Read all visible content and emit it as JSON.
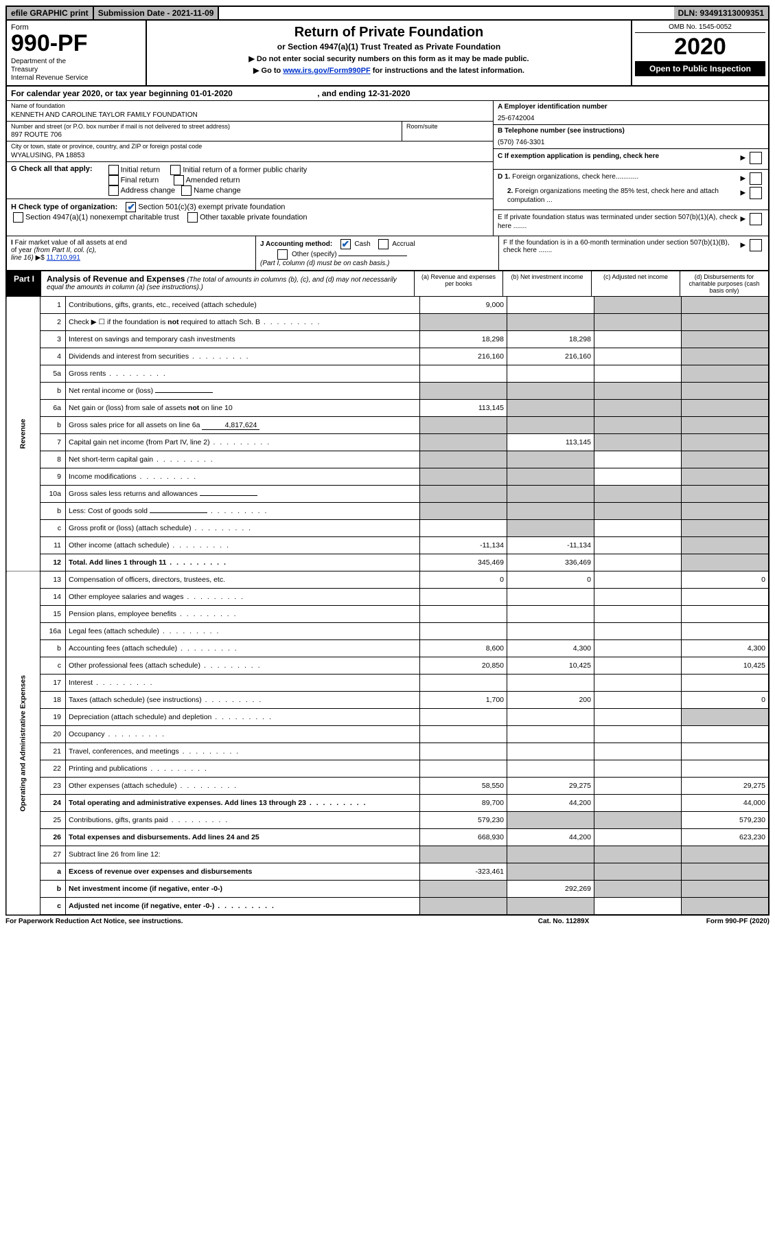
{
  "topbar": {
    "efile": "efile GRAPHIC print",
    "subdate_label": "Submission Date - 2021-11-09",
    "dln": "DLN: 93491313009351"
  },
  "header": {
    "form_label": "Form",
    "form_num": "990-PF",
    "dept": "Department of the Treasury\nInternal Revenue Service",
    "title": "Return of Private Foundation",
    "subtitle": "or Section 4947(a)(1) Trust Treated as Private Foundation",
    "note1": "▶ Do not enter social security numbers on this form as it may be made public.",
    "note2_pre": "▶ Go to ",
    "note2_link": "www.irs.gov/Form990PF",
    "note2_post": " for instructions and the latest information.",
    "omb": "OMB No. 1545-0052",
    "year": "2020",
    "open": "Open to Public Inspection"
  },
  "calendar": {
    "text_pre": "For calendar year 2020, or tax year beginning ",
    "begin": "01-01-2020",
    "text_mid": " , and ending ",
    "end": "12-31-2020"
  },
  "name_block": {
    "label": "Name of foundation",
    "value": "KENNETH AND CAROLINE TAYLOR FAMILY FOUNDATION",
    "addr_label": "Number and street (or P.O. box number if mail is not delivered to street address)",
    "addr": "897 ROUTE 706",
    "room_label": "Room/suite",
    "city_label": "City or town, state or province, country, and ZIP or foreign postal code",
    "city": "WYALUSING, PA  18853"
  },
  "right_block": {
    "a_label": "A Employer identification number",
    "a_val": "25-6742004",
    "b_label": "B Telephone number (see instructions)",
    "b_val": "(570) 746-3301",
    "c_label": "C If exemption application is pending, check here",
    "d1": "D 1. Foreign organizations, check here............",
    "d2": "2. Foreign organizations meeting the 85% test, check here and attach computation ...",
    "e": "E  If private foundation status was terminated under section 507(b)(1)(A), check here .......",
    "f": "F  If the foundation is in a 60-month termination under section 507(b)(1)(B), check here ......."
  },
  "g": {
    "label": "G Check all that apply:",
    "opts": [
      "Initial return",
      "Initial return of a former public charity",
      "Final return",
      "Amended return",
      "Address change",
      "Name change"
    ]
  },
  "h": {
    "label": "H Check type of organization:",
    "o1": "Section 501(c)(3) exempt private foundation",
    "o2": "Section 4947(a)(1) nonexempt charitable trust",
    "o3": "Other taxable private foundation"
  },
  "i": {
    "label": "I Fair market value of all assets at end of year (from Part II, col. (c), line 16) ▶$",
    "val": "11,710,991"
  },
  "j": {
    "label": "J Accounting method:",
    "cash": "Cash",
    "accrual": "Accrual",
    "other": "Other (specify)",
    "note": "(Part I, column (d) must be on cash basis.)"
  },
  "part1": {
    "label": "Part I",
    "head": "Analysis of Revenue and Expenses",
    "sub": " (The total of amounts in columns (b), (c), and (d) may not necessarily equal the amounts in column (a) (see instructions).)",
    "cols": {
      "a": "(a) Revenue and expenses per books",
      "b": "(b) Net investment income",
      "c": "(c) Adjusted net income",
      "d": "(d) Disbursements for charitable purposes (cash basis only)"
    }
  },
  "rows": [
    {
      "n": "1",
      "desc": "Contributions, gifts, grants, etc., received (attach schedule)",
      "a": "9,000",
      "b": "",
      "c": "g",
      "d": "g"
    },
    {
      "n": "2",
      "desc": "Check ▶ ☐ if the foundation is not required to attach Sch. B",
      "dots": true,
      "a": "g",
      "b": "g",
      "c": "g",
      "d": "g"
    },
    {
      "n": "3",
      "desc": "Interest on savings and temporary cash investments",
      "a": "18,298",
      "b": "18,298",
      "c": "",
      "d": "g"
    },
    {
      "n": "4",
      "desc": "Dividends and interest from securities",
      "dots": true,
      "a": "216,160",
      "b": "216,160",
      "c": "",
      "d": "g"
    },
    {
      "n": "5a",
      "desc": "Gross rents",
      "dots": true,
      "a": "",
      "b": "",
      "c": "",
      "d": "g"
    },
    {
      "n": "b",
      "desc": "Net rental income or (loss)",
      "inner": "",
      "a": "g",
      "b": "g",
      "c": "g",
      "d": "g"
    },
    {
      "n": "6a",
      "desc": "Net gain or (loss) from sale of assets not on line 10",
      "a": "113,145",
      "b": "g",
      "c": "g",
      "d": "g"
    },
    {
      "n": "b",
      "desc": "Gross sales price for all assets on line 6a",
      "inner": "4,817,624",
      "a": "g",
      "b": "g",
      "c": "g",
      "d": "g"
    },
    {
      "n": "7",
      "desc": "Capital gain net income (from Part IV, line 2)",
      "dots": true,
      "a": "g",
      "b": "113,145",
      "c": "g",
      "d": "g"
    },
    {
      "n": "8",
      "desc": "Net short-term capital gain",
      "dots": true,
      "a": "g",
      "b": "g",
      "c": "",
      "d": "g"
    },
    {
      "n": "9",
      "desc": "Income modifications",
      "dots": true,
      "a": "g",
      "b": "g",
      "c": "",
      "d": "g"
    },
    {
      "n": "10a",
      "desc": "Gross sales less returns and allowances",
      "inner": "",
      "a": "g",
      "b": "g",
      "c": "g",
      "d": "g"
    },
    {
      "n": "b",
      "desc": "Less: Cost of goods sold",
      "dots": true,
      "inner": "",
      "a": "g",
      "b": "g",
      "c": "g",
      "d": "g"
    },
    {
      "n": "c",
      "desc": "Gross profit or (loss) (attach schedule)",
      "dots": true,
      "a": "",
      "b": "g",
      "c": "",
      "d": "g"
    },
    {
      "n": "11",
      "desc": "Other income (attach schedule)",
      "dots": true,
      "a": "-11,134",
      "b": "-11,134",
      "c": "",
      "d": "g"
    },
    {
      "n": "12",
      "desc": "Total. Add lines 1 through 11",
      "dots": true,
      "bold": true,
      "a": "345,469",
      "b": "336,469",
      "c": "",
      "d": "g"
    },
    {
      "n": "13",
      "desc": "Compensation of officers, directors, trustees, etc.",
      "a": "0",
      "b": "0",
      "c": "",
      "d": "0"
    },
    {
      "n": "14",
      "desc": "Other employee salaries and wages",
      "dots": true,
      "a": "",
      "b": "",
      "c": "",
      "d": ""
    },
    {
      "n": "15",
      "desc": "Pension plans, employee benefits",
      "dots": true,
      "a": "",
      "b": "",
      "c": "",
      "d": ""
    },
    {
      "n": "16a",
      "desc": "Legal fees (attach schedule)",
      "dots": true,
      "a": "",
      "b": "",
      "c": "",
      "d": ""
    },
    {
      "n": "b",
      "desc": "Accounting fees (attach schedule)",
      "dots": true,
      "a": "8,600",
      "b": "4,300",
      "c": "",
      "d": "4,300"
    },
    {
      "n": "c",
      "desc": "Other professional fees (attach schedule)",
      "dots": true,
      "a": "20,850",
      "b": "10,425",
      "c": "",
      "d": "10,425"
    },
    {
      "n": "17",
      "desc": "Interest",
      "dots": true,
      "a": "",
      "b": "",
      "c": "",
      "d": ""
    },
    {
      "n": "18",
      "desc": "Taxes (attach schedule) (see instructions)",
      "dots": true,
      "a": "1,700",
      "b": "200",
      "c": "",
      "d": "0"
    },
    {
      "n": "19",
      "desc": "Depreciation (attach schedule) and depletion",
      "dots": true,
      "a": "",
      "b": "",
      "c": "",
      "d": "g"
    },
    {
      "n": "20",
      "desc": "Occupancy",
      "dots": true,
      "a": "",
      "b": "",
      "c": "",
      "d": ""
    },
    {
      "n": "21",
      "desc": "Travel, conferences, and meetings",
      "dots": true,
      "a": "",
      "b": "",
      "c": "",
      "d": ""
    },
    {
      "n": "22",
      "desc": "Printing and publications",
      "dots": true,
      "a": "",
      "b": "",
      "c": "",
      "d": ""
    },
    {
      "n": "23",
      "desc": "Other expenses (attach schedule)",
      "dots": true,
      "a": "58,550",
      "b": "29,275",
      "c": "",
      "d": "29,275"
    },
    {
      "n": "24",
      "desc": "Total operating and administrative expenses. Add lines 13 through 23",
      "dots": true,
      "bold": true,
      "a": "89,700",
      "b": "44,200",
      "c": "",
      "d": "44,000"
    },
    {
      "n": "25",
      "desc": "Contributions, gifts, grants paid",
      "dots": true,
      "a": "579,230",
      "b": "g",
      "c": "g",
      "d": "579,230"
    },
    {
      "n": "26",
      "desc": "Total expenses and disbursements. Add lines 24 and 25",
      "bold": true,
      "a": "668,930",
      "b": "44,200",
      "c": "",
      "d": "623,230"
    },
    {
      "n": "27",
      "desc": "Subtract line 26 from line 12:",
      "a": "g",
      "b": "g",
      "c": "g",
      "d": "g"
    },
    {
      "n": "a",
      "desc": "Excess of revenue over expenses and disbursements",
      "bold": true,
      "a": "-323,461",
      "b": "g",
      "c": "g",
      "d": "g"
    },
    {
      "n": "b",
      "desc": "Net investment income (if negative, enter -0-)",
      "bold": true,
      "a": "g",
      "b": "292,269",
      "c": "g",
      "d": "g"
    },
    {
      "n": "c",
      "desc": "Adjusted net income (if negative, enter -0-)",
      "bold": true,
      "dots": true,
      "a": "g",
      "b": "g",
      "c": "",
      "d": "g"
    }
  ],
  "side_labels": {
    "revenue": "Revenue",
    "expenses": "Operating and Administrative Expenses"
  },
  "footer": {
    "left": "For Paperwork Reduction Act Notice, see instructions.",
    "mid": "Cat. No. 11289X",
    "right": "Form 990-PF (2020)"
  }
}
